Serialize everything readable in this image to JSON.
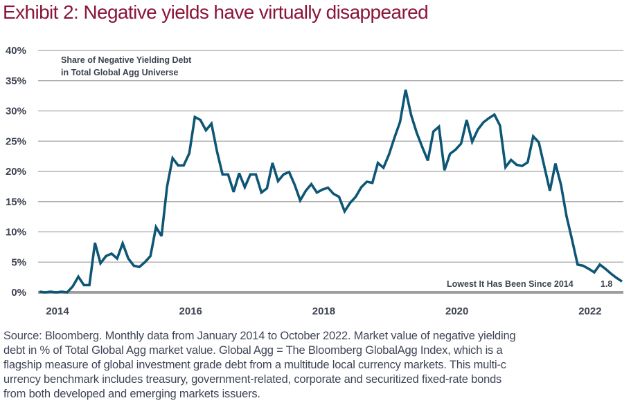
{
  "title": "Exhibit 2: Negative yields have virtually disappeared",
  "colors": {
    "title": "#8a1538",
    "line": "#0e5675",
    "grid": "#a3a3a3",
    "baseline": "#9e9e9e",
    "text": "#3d4350"
  },
  "chart_data": {
    "type": "line",
    "title": "Exhibit 2: Negative yields have virtually disappeared",
    "series_label": [
      "Share of Negative Yielding Debt",
      "in Total Global Agg Universe"
    ],
    "xlabel": "",
    "ylabel": "",
    "ylim": [
      0,
      40
    ],
    "yticks": [
      0,
      5,
      10,
      15,
      20,
      25,
      30,
      35,
      40
    ],
    "ytick_labels": [
      "0%",
      "5%",
      "10%",
      "15%",
      "20%",
      "25%",
      "30%",
      "35%",
      "40%"
    ],
    "xticks": [
      2014,
      2016,
      2018,
      2020,
      2022
    ],
    "xtick_labels": [
      "2014",
      "2016",
      "2018",
      "2020",
      "2022"
    ],
    "x_start": "2014-01",
    "x_end": "2022-10",
    "frequency": "monthly",
    "grid": true,
    "legend": "none",
    "annotations": [
      {
        "text": "Lowest It Has Been Since 2014",
        "position": "bottom-right"
      },
      {
        "text": "1.8",
        "position": "at last point"
      }
    ],
    "series": [
      {
        "name": "Share of Negative Yielding Debt in Total Global Agg Universe (%)",
        "values": [
          0.1,
          0.0,
          0.1,
          0.0,
          0.1,
          0.0,
          1.0,
          2.6,
          1.2,
          1.2,
          8.2,
          4.8,
          6.0,
          6.4,
          5.6,
          8.1,
          5.6,
          4.4,
          4.2,
          5.0,
          6.0,
          10.8,
          9.3,
          17.5,
          22.2,
          21.0,
          21.0,
          23.0,
          29.0,
          28.5,
          26.8,
          27.9,
          23.3,
          19.5,
          19.5,
          16.6,
          19.7,
          17.4,
          19.5,
          19.5,
          16.5,
          17.2,
          21.4,
          18.4,
          19.5,
          19.9,
          17.8,
          15.2,
          16.8,
          17.9,
          16.5,
          17.0,
          17.3,
          16.3,
          15.8,
          13.4,
          14.8,
          15.8,
          17.4,
          18.3,
          18.1,
          21.4,
          20.6,
          22.8,
          25.6,
          28.2,
          33.5,
          29.3,
          26.4,
          24.0,
          21.8,
          26.6,
          27.4,
          20.2,
          22.9,
          23.6,
          24.6,
          28.5,
          24.9,
          26.9,
          28.1,
          28.8,
          29.4,
          27.6,
          20.7,
          21.9,
          21.1,
          20.9,
          21.5,
          25.8,
          24.8,
          20.8,
          16.8,
          21.3,
          17.8,
          12.6,
          8.7,
          4.6,
          4.4,
          3.9,
          3.3,
          4.6,
          3.9,
          3.1,
          2.4,
          1.8
        ]
      }
    ]
  },
  "footnote": {
    "lines": [
      "Source: Bloomberg. Monthly data from January 2014 to October 2022. Market value of negative yielding",
      "debt in % of Total Global Agg market value. Global Agg = The Bloomberg GlobalAgg Index, which is a",
      "flagship measure of global investment grade debt from a multitude local currency markets. This multi-c",
      "urrency benchmark includes treasury, government-related, corporate and securitized fixed-rate bonds",
      "from both developed and emerging markets issuers."
    ]
  }
}
